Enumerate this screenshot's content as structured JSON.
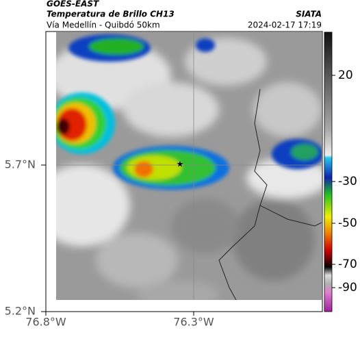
{
  "header": {
    "source": "GOES-EAST",
    "title": "Temperatura de Brillo CH13",
    "subtitle": "Vía Medellín - Quibdó 50km",
    "agency": "SIATA",
    "timestamp": "2024-02-17 17:19"
  },
  "axes": {
    "lat_labels": [
      "5.7°N",
      "5.2°N"
    ],
    "lon_labels": [
      "76.8°W",
      "76.3°W"
    ]
  },
  "colorbar": {
    "ticks": [
      20,
      -30,
      -50,
      -70,
      -90
    ]
  }
}
